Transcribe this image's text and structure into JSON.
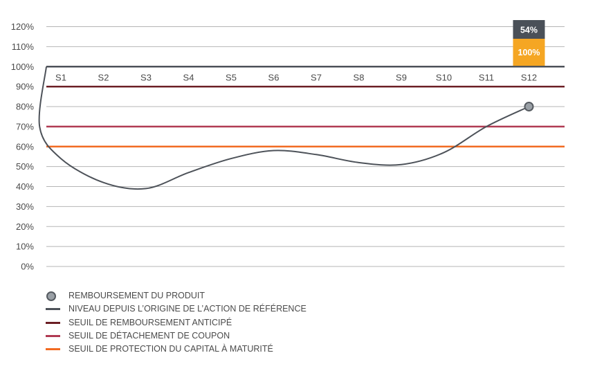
{
  "chart_data": {
    "type": "line",
    "categories": [
      "S1",
      "S2",
      "S3",
      "S4",
      "S5",
      "S6",
      "S7",
      "S8",
      "S9",
      "S10",
      "S11",
      "S12"
    ],
    "y_ticks": [
      "120%",
      "110%",
      "100%",
      "90%",
      "80%",
      "70%",
      "60%",
      "50%",
      "40%",
      "30%",
      "20%",
      "10%",
      "0%"
    ],
    "ylim": [
      0,
      120
    ],
    "grid": true,
    "series": [
      {
        "name": "NIVEAU DEPUIS L’ORIGINE DE L’ACTION DE RÉFÉRENCE",
        "color": "#4d5259",
        "x": [
          0,
          0.5,
          1,
          2,
          3,
          4,
          5,
          6,
          7,
          8,
          9,
          10,
          11,
          12
        ],
        "values": [
          100,
          70,
          54,
          42,
          39,
          47,
          54,
          58,
          56,
          52,
          51,
          57,
          70,
          80
        ]
      }
    ],
    "thresholds": [
      {
        "name": "SEUIL DE REMBOURSEMENT ANTICIPÉ",
        "value": 90,
        "color": "#6b1e24"
      },
      {
        "name": "SEUIL DE DÉTACHEMENT DE COUPON",
        "value": 70,
        "color": "#b03a52"
      },
      {
        "name": "SEUIL DE PROTECTION DU CAPITAL À MATURITÉ",
        "value": 60,
        "color": "#f26a21"
      }
    ],
    "redemption_point": {
      "name": "REMBOURSEMENT DU PRODUIT",
      "category": "S12",
      "value": 80,
      "color": "#9aa0a6"
    },
    "bar_labels": {
      "top": "54%",
      "bottom": "100%",
      "top_color": "#4a5058",
      "bottom_color": "#f5a623"
    },
    "legend_position": "bottom-left"
  },
  "legend": [
    {
      "label": "REMBOURSEMENT DU PRODUIT",
      "kind": "dot",
      "color": "#9aa0a6"
    },
    {
      "label": "NIVEAU DEPUIS L’ORIGINE DE L’ACTION DE RÉFÉRENCE",
      "kind": "line",
      "color": "#4d5259"
    },
    {
      "label": "SEUIL DE REMBOURSEMENT ANTICIPÉ",
      "kind": "line",
      "color": "#6b1e24"
    },
    {
      "label": "SEUIL DE DÉTACHEMENT DE COUPON",
      "kind": "line",
      "color": "#b03a52"
    },
    {
      "label": "SEUIL DE PROTECTION DU CAPITAL À MATURITÉ",
      "kind": "line",
      "color": "#f26a21"
    }
  ]
}
